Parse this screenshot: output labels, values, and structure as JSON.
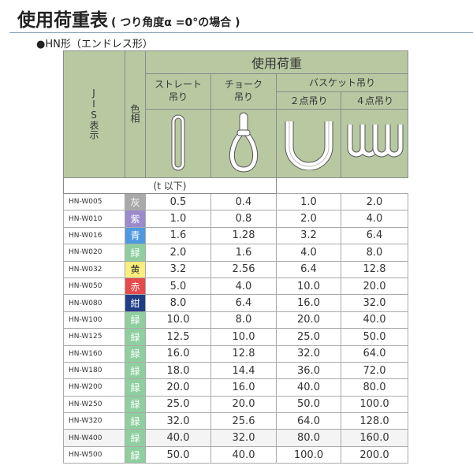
{
  "title": "使用荷重表",
  "title_note": "( つり角度α =0°の場合 )",
  "subtitle": "●HN形（エンドレス形）",
  "header": {
    "jis": "JIS表示",
    "color": "色相",
    "load": "使用荷重",
    "straight": "ストレート\n吊り",
    "choke": "チョーク\n吊り",
    "basket": "バスケット吊り",
    "two_point": "２点吊り",
    "four_point": "４点吊り",
    "unit": "(t 以下)"
  },
  "colors": {
    "header_bg": "#b8c9a2",
    "灰": "#a9a9a9",
    "紫": "#9b8bcc",
    "青": "#4d9ae0",
    "緑": "#8fcf9f",
    "黄": "#fbee7c",
    "赤": "#e64a4d",
    "紺": "#1f3e86"
  },
  "rows": [
    {
      "code": "HN-W005",
      "color": "灰",
      "v": [
        "0.5",
        "0.4",
        "1.0",
        "2.0"
      ]
    },
    {
      "code": "HN-W010",
      "color": "紫",
      "v": [
        "1.0",
        "0.8",
        "2.0",
        "4.0"
      ]
    },
    {
      "code": "HN-W016",
      "color": "青",
      "v": [
        "1.6",
        "1.28",
        "3.2",
        "6.4"
      ]
    },
    {
      "code": "HN-W020",
      "color": "緑",
      "v": [
        "2.0",
        "1.6",
        "4.0",
        "8.0"
      ]
    },
    {
      "code": "HN-W032",
      "color": "黄",
      "v": [
        "3.2",
        "2.56",
        "6.4",
        "12.8"
      ]
    },
    {
      "code": "HN-W050",
      "color": "赤",
      "v": [
        "5.0",
        "4.0",
        "10.0",
        "20.0"
      ]
    },
    {
      "code": "HN-W080",
      "color": "紺",
      "v": [
        "8.0",
        "6.4",
        "16.0",
        "32.0"
      ]
    },
    {
      "code": "HN-W100",
      "color": "緑",
      "v": [
        "10.0",
        "8.0",
        "20.0",
        "40.0"
      ]
    },
    {
      "code": "HN-W125",
      "color": "緑",
      "v": [
        "12.5",
        "10.0",
        "25.0",
        "50.0"
      ]
    },
    {
      "code": "HN-W160",
      "color": "緑",
      "v": [
        "16.0",
        "12.8",
        "32.0",
        "64.0"
      ]
    },
    {
      "code": "HN-W180",
      "color": "緑",
      "v": [
        "18.0",
        "14.4",
        "36.0",
        "72.0"
      ]
    },
    {
      "code": "HN-W200",
      "color": "緑",
      "v": [
        "20.0",
        "16.0",
        "40.0",
        "80.0"
      ]
    },
    {
      "code": "HN-W250",
      "color": "緑",
      "v": [
        "25.0",
        "20.0",
        "50.0",
        "100.0"
      ]
    },
    {
      "code": "HN-W320",
      "color": "緑",
      "v": [
        "32.0",
        "25.6",
        "64.0",
        "128.0"
      ]
    },
    {
      "code": "HN-W400",
      "color": "緑",
      "v": [
        "40.0",
        "32.0",
        "80.0",
        "160.0"
      ]
    },
    {
      "code": "HN-W500",
      "color": "緑",
      "v": [
        "50.0",
        "40.0",
        "100.0",
        "200.0"
      ]
    }
  ]
}
